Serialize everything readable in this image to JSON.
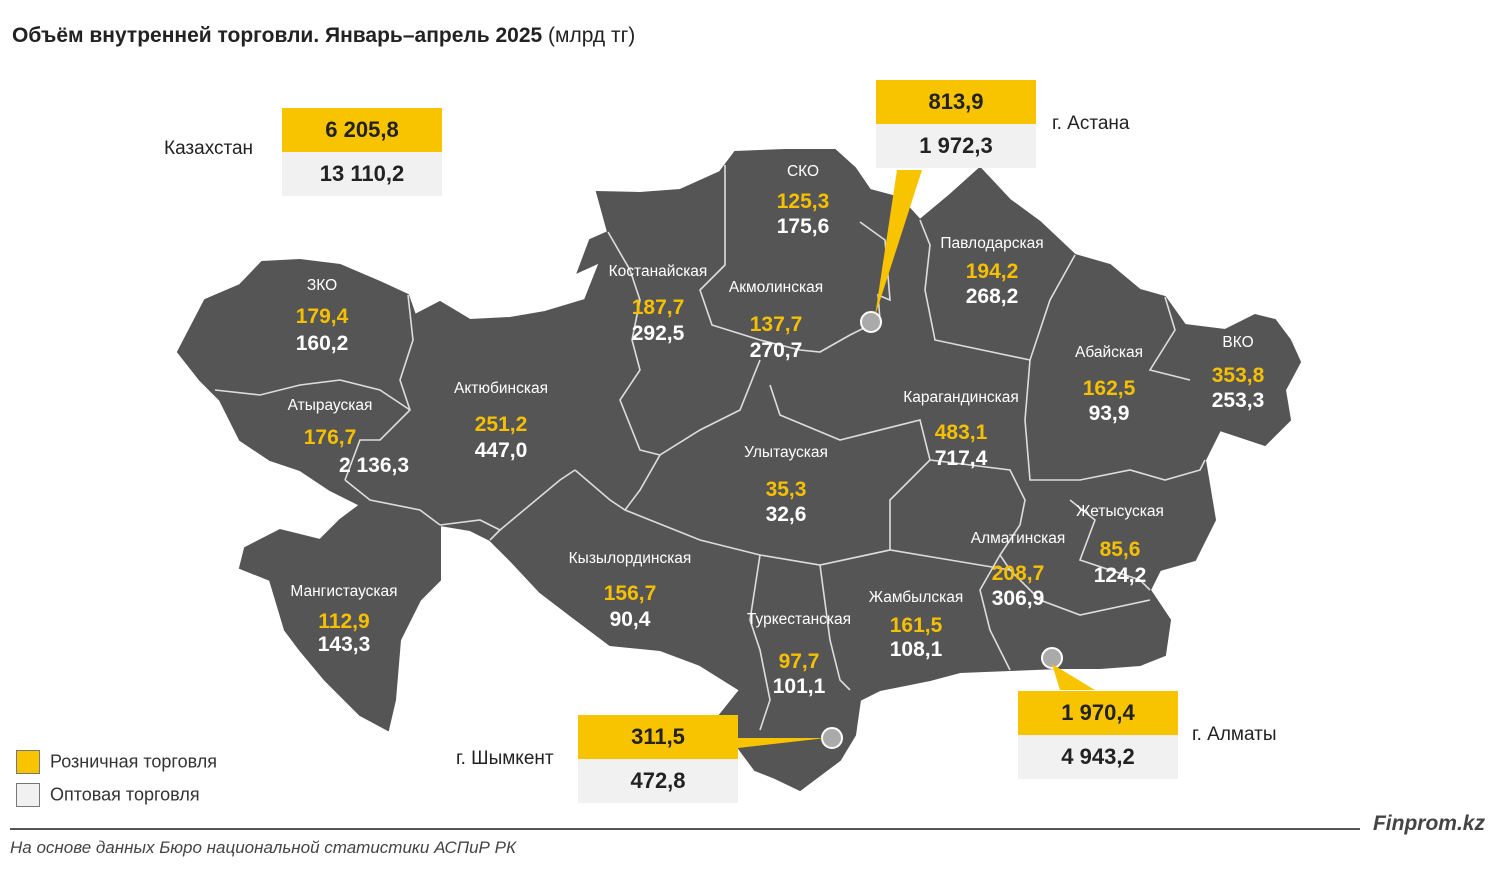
{
  "title": {
    "bold": "Объём внутренней торговли. Январь–апрель 2025",
    "unit": "(млрд тг)"
  },
  "colors": {
    "map_fill": "#555555",
    "retail": "#f6c000",
    "wholesale": "#ffffff",
    "callout_top": "#f8c400",
    "callout_bottom": "#f1f1f1"
  },
  "legend": {
    "retail": "Розничная торговля",
    "wholesale": "Оптовая торговля"
  },
  "callouts": {
    "kazakhstan": {
      "label": "Казахстан",
      "retail": "6 205,8",
      "wholesale": "13 110,2"
    },
    "astana": {
      "label": "г. Астана",
      "retail": "813,9",
      "wholesale": "1 972,3"
    },
    "shymkent": {
      "label": "г. Шымкент",
      "retail": "311,5",
      "wholesale": "472,8"
    },
    "almaty": {
      "label": "г. Алматы",
      "retail": "1 970,4",
      "wholesale": "4 943,2"
    }
  },
  "regions": [
    {
      "name": "СКО",
      "retail": "125,3",
      "wholesale": "175,6"
    },
    {
      "name": "Павлодарская",
      "retail": "194,2",
      "wholesale": "268,2"
    },
    {
      "name": "Костанайская",
      "retail": "187,7",
      "wholesale": "292,5"
    },
    {
      "name": "Акмолинская",
      "retail": "137,7",
      "wholesale": "270,7"
    },
    {
      "name": "ЗКО",
      "retail": "179,4",
      "wholesale": "160,2"
    },
    {
      "name": "Абайская",
      "retail": "162,5",
      "wholesale": "93,9"
    },
    {
      "name": "ВКО",
      "retail": "353,8",
      "wholesale": "253,3"
    },
    {
      "name": "Атырауская",
      "retail": "176,7",
      "wholesale": "2 136,3"
    },
    {
      "name": "Актюбинская",
      "retail": "251,2",
      "wholesale": "447,0"
    },
    {
      "name": "Карагандинская",
      "retail": "483,1",
      "wholesale": "717,4"
    },
    {
      "name": "Улытауская",
      "retail": "35,3",
      "wholesale": "32,6"
    },
    {
      "name": "Жетысуская",
      "retail": "85,6",
      "wholesale": "124,2"
    },
    {
      "name": "Алматинская",
      "retail": "208,7",
      "wholesale": "306,9"
    },
    {
      "name": "Кызылординская",
      "retail": "156,7",
      "wholesale": "90,4"
    },
    {
      "name": "Мангистауская",
      "retail": "112,9",
      "wholesale": "143,3"
    },
    {
      "name": "Жамбылская",
      "retail": "161,5",
      "wholesale": "108,1"
    },
    {
      "name": "Туркестанская",
      "retail": "97,7",
      "wholesale": "101,1"
    }
  ],
  "footer": {
    "brand": "Finprom.kz",
    "source": "На основе данных Бюро национальной статистики АСПиР РК"
  }
}
